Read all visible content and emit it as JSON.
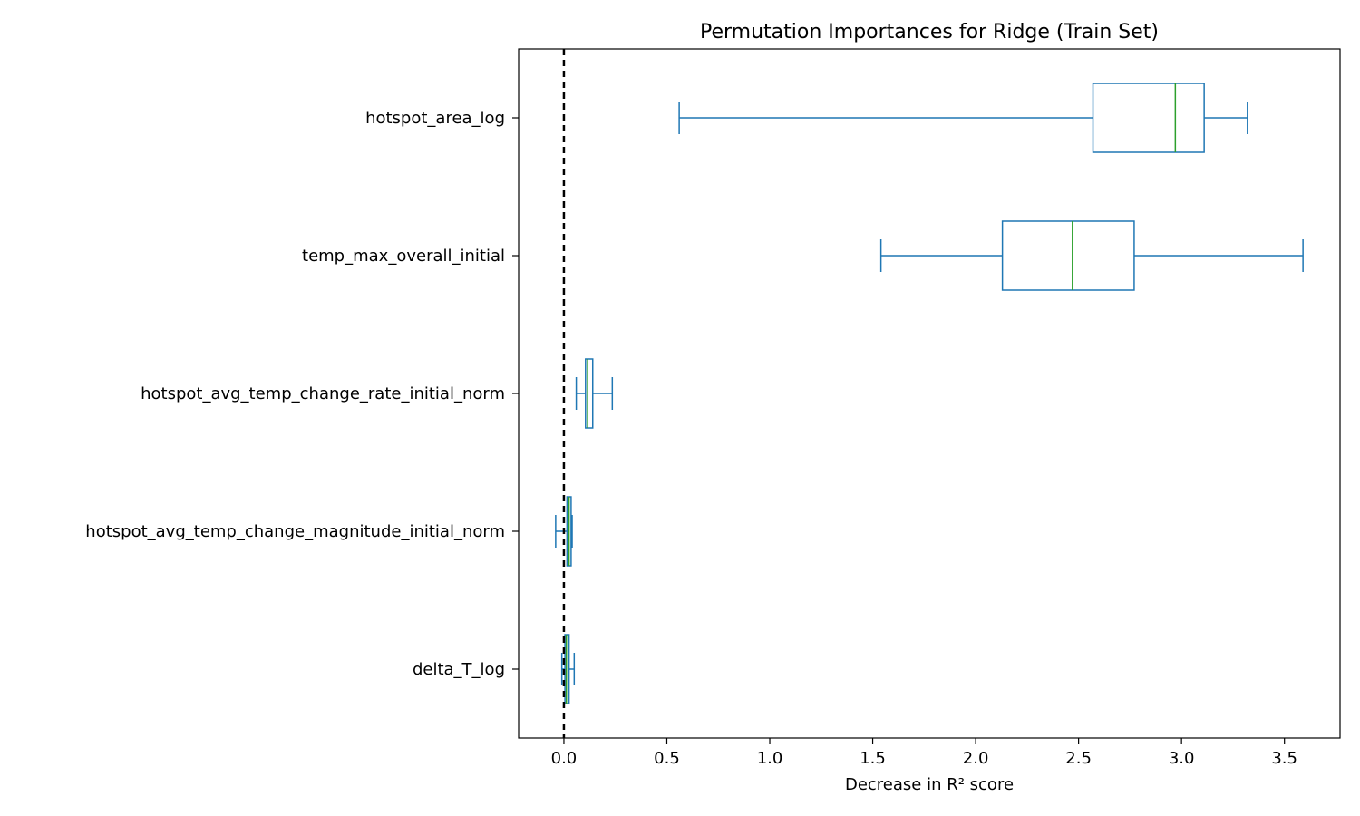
{
  "chart_data": {
    "type": "boxplot",
    "orientation": "horizontal",
    "title": "Permutation Importances for Ridge (Train Set)",
    "xlabel": "Decrease in R² score",
    "ylabel": "",
    "xlim": [
      -0.22,
      3.77
    ],
    "xticks": [
      0.0,
      0.5,
      1.0,
      1.5,
      2.0,
      2.5,
      3.0,
      3.5
    ],
    "xtick_labels": [
      "0.0",
      "0.5",
      "1.0",
      "1.5",
      "2.0",
      "2.5",
      "3.0",
      "3.5"
    ],
    "grid": false,
    "reference_line": {
      "x": 0.0,
      "style": "dashed",
      "color": "#000000"
    },
    "colors": {
      "box": "#1f77b4",
      "median": "#2ca02c",
      "reference": "#000000"
    },
    "categories": [
      "hotspot_area_log",
      "temp_max_overall_initial",
      "hotspot_avg_temp_change_rate_initial_norm",
      "hotspot_avg_temp_change_magnitude_initial_norm",
      "delta_T_log"
    ],
    "boxes": [
      {
        "name": "hotspot_area_log",
        "whisker_low": 0.56,
        "q1": 2.57,
        "median": 2.97,
        "q3": 3.11,
        "whisker_high": 3.32
      },
      {
        "name": "temp_max_overall_initial",
        "whisker_low": 1.54,
        "q1": 2.13,
        "median": 2.47,
        "q3": 2.77,
        "whisker_high": 3.59
      },
      {
        "name": "hotspot_avg_temp_change_rate_initial_norm",
        "whisker_low": 0.06,
        "q1": 0.105,
        "median": 0.115,
        "q3": 0.14,
        "whisker_high": 0.235
      },
      {
        "name": "hotspot_avg_temp_change_magnitude_initial_norm",
        "whisker_low": -0.04,
        "q1": 0.015,
        "median": 0.025,
        "q3": 0.035,
        "whisker_high": 0.04
      },
      {
        "name": "delta_T_log",
        "whisker_low": -0.01,
        "q1": 0.005,
        "median": 0.012,
        "q3": 0.025,
        "whisker_high": 0.05
      }
    ]
  }
}
